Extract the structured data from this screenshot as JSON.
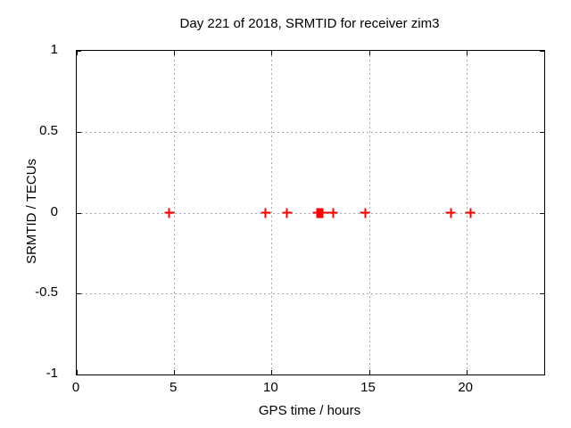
{
  "chart_data": {
    "type": "scatter",
    "title": "Day 221 of 2018, SRMTID for receiver zim3",
    "xlabel": "GPS time / hours",
    "ylabel": "SRMTID / TECUs",
    "xlim": [
      0,
      24
    ],
    "ylim": [
      -1,
      1
    ],
    "xticks": [
      0,
      5,
      10,
      15,
      20
    ],
    "yticks": [
      -1,
      -0.5,
      0,
      0.5,
      1
    ],
    "grid": true,
    "legend": "none",
    "marker": "plus",
    "colors": {
      "marker": "#ff0000",
      "grid": "#aaaaaa",
      "axis": "#000000",
      "background": "#ffffff"
    },
    "series": [
      {
        "name": "SRMTID",
        "x": [
          4.75,
          9.7,
          10.8,
          12.36,
          12.4,
          12.44,
          12.48,
          12.52,
          12.56,
          12.6,
          12.64,
          13.15,
          14.8,
          19.2,
          20.2
        ],
        "y": [
          0,
          0,
          0,
          0,
          0,
          0,
          0,
          0,
          0,
          0,
          0,
          0,
          0,
          0,
          0
        ]
      }
    ]
  }
}
